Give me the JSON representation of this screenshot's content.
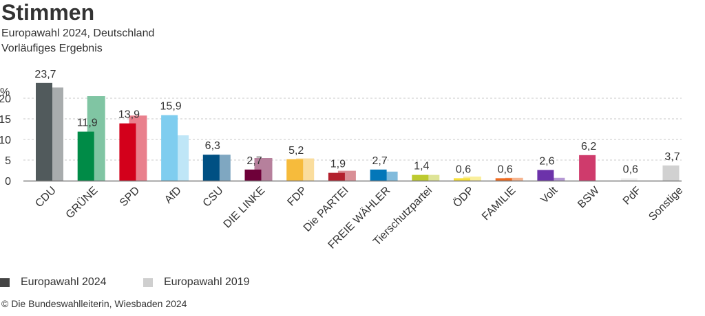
{
  "header": {
    "title": "Stimmen",
    "subtitle": "Europawahl 2024, Deutschland",
    "subtitle2": "Vorläufiges Ergebnis"
  },
  "legend": [
    {
      "label": "Europawahl 2024",
      "color": "#444444"
    },
    {
      "label": "Europawahl 2019",
      "color": "#cfcfcf"
    }
  ],
  "footer": {
    "copyright": "© Die Bundeswahlleiterin, Wiesbaden 2024"
  },
  "chart_data": {
    "type": "bar",
    "title": "Stimmen",
    "ylabel": "%",
    "ylim": [
      0,
      20
    ],
    "yticks": [
      0,
      5,
      10,
      15,
      20
    ],
    "grid": true,
    "legend_position": "bottom-left",
    "categories": [
      "CDU",
      "GRÜNE",
      "SPD",
      "AfD",
      "CSU",
      "DIE LINKE",
      "FDP",
      "Die PARTEI",
      "FREIE WÄHLER",
      "Tierschutzpartei",
      "ÖDP",
      "FAMILIE",
      "Volt",
      "BSW",
      "PdF",
      "Sonstige"
    ],
    "series": [
      {
        "name": "Europawahl 2024",
        "values": [
          23.7,
          11.9,
          13.9,
          15.9,
          6.3,
          2.7,
          5.2,
          1.9,
          2.7,
          1.4,
          0.6,
          0.6,
          2.6,
          6.2,
          0.6,
          3.7
        ],
        "labels": [
          "23,7",
          "11,9",
          "13,9",
          "15,9",
          "6,3",
          "2,7",
          "5,2",
          "1,9",
          "2,7",
          "1,4",
          "0,6",
          "0,6",
          "2,6",
          "6,2",
          "0,6",
          "3,7"
        ]
      },
      {
        "name": "Europawahl 2019",
        "values": [
          22.6,
          20.5,
          15.8,
          11.0,
          6.3,
          5.5,
          5.4,
          2.4,
          2.2,
          1.4,
          1.0,
          0.7,
          0.7,
          null,
          null,
          null
        ]
      }
    ],
    "colors_2024": [
      "#515a5c",
      "#008b47",
      "#d3001b",
      "#7fcdef",
      "#005083",
      "#6e0039",
      "#f6bb3c",
      "#b3202d",
      "#0377b9",
      "#bdca2f",
      "#f6e03c",
      "#ee6b21",
      "#6c32aa",
      "#cf3b6c",
      "#efefef",
      "#d1d1d1"
    ],
    "colors_2019": [
      "#a8acad",
      "#80c5a3",
      "#e9808d",
      "#bfe6f7",
      "#7fa7c1",
      "#b6809c",
      "#fadd9d",
      "#d98f96",
      "#81bbdc",
      "#dee497",
      "#faef9d",
      "#f6b590",
      "#b598d4",
      null,
      null,
      null
    ]
  }
}
